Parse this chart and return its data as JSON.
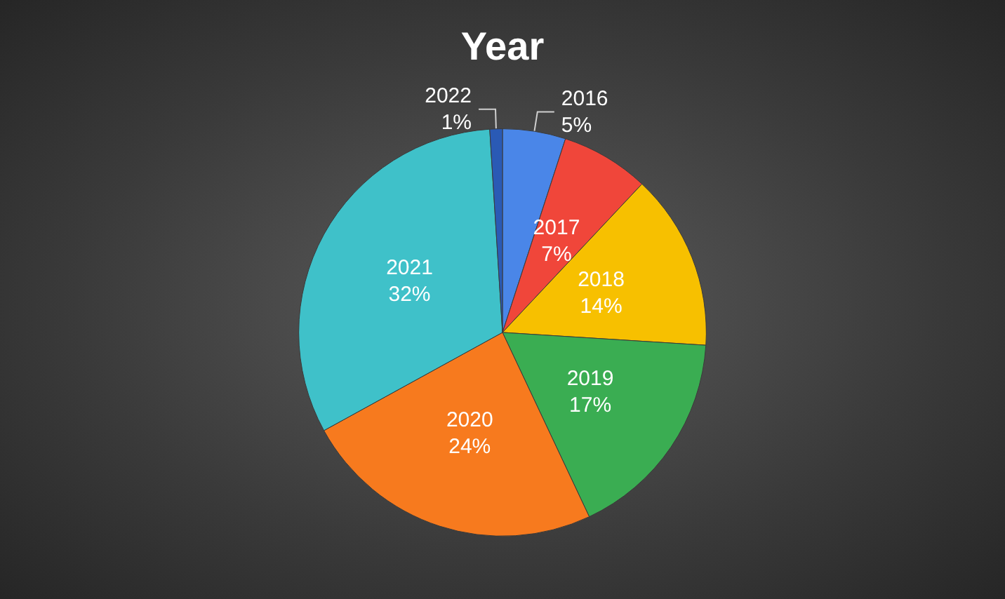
{
  "chart_data": {
    "type": "pie",
    "title": "Year",
    "categories": [
      "2016",
      "2017",
      "2018",
      "2019",
      "2020",
      "2021",
      "2022"
    ],
    "values": [
      5,
      7,
      14,
      17,
      24,
      32,
      1
    ],
    "value_labels": [
      "5%",
      "7%",
      "14%",
      "17%",
      "24%",
      "32%",
      "1%"
    ],
    "colors": [
      "#4a86e8",
      "#f0463a",
      "#f7c000",
      "#3aad52",
      "#f77a1e",
      "#3fc1c9",
      "#2a5ab5"
    ],
    "legend": false
  }
}
